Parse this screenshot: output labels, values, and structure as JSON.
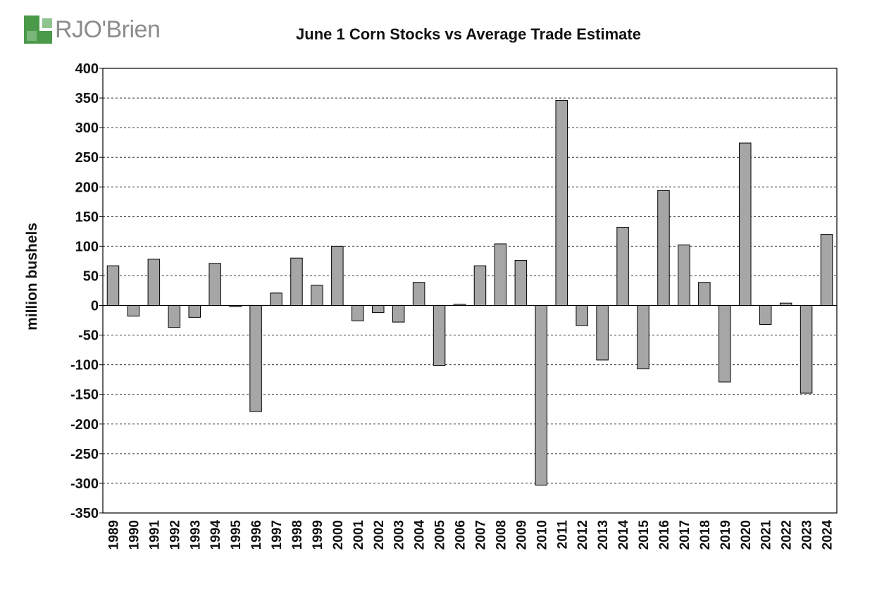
{
  "logo": {
    "text": "RJO'Brien",
    "colors": {
      "green": "#4a9a4a",
      "gray": "#8c8c8c"
    }
  },
  "chart_data": {
    "type": "bar",
    "title": "June 1 Corn Stocks vs Average Trade Estimate",
    "xlabel": "",
    "ylabel": "million bushels",
    "ylim": [
      -350,
      400
    ],
    "yticks": [
      400,
      350,
      300,
      250,
      200,
      150,
      100,
      50,
      0,
      -50,
      -100,
      -150,
      -200,
      -250,
      -300,
      -350
    ],
    "grid": true,
    "legend": "none",
    "bar_color": "#a6a6a6",
    "categories": [
      "1989",
      "1990",
      "1991",
      "1992",
      "1993",
      "1994",
      "1995",
      "1996",
      "1997",
      "1998",
      "1999",
      "2000",
      "2001",
      "2002",
      "2003",
      "2004",
      "2005",
      "2006",
      "2007",
      "2008",
      "2009",
      "2010",
      "2011",
      "2012",
      "2013",
      "2014",
      "2015",
      "2016",
      "2017",
      "2018",
      "2019",
      "2020",
      "2021",
      "2022",
      "2023",
      "2024"
    ],
    "values": [
      67,
      -18,
      78,
      -37,
      -20,
      71,
      -2,
      -179,
      21,
      80,
      34,
      100,
      -26,
      -12,
      -28,
      39,
      -101,
      2,
      67,
      104,
      76,
      -303,
      346,
      -34,
      -92,
      132,
      -107,
      194,
      102,
      39,
      -129,
      274,
      -32,
      4,
      -148,
      120
    ]
  }
}
